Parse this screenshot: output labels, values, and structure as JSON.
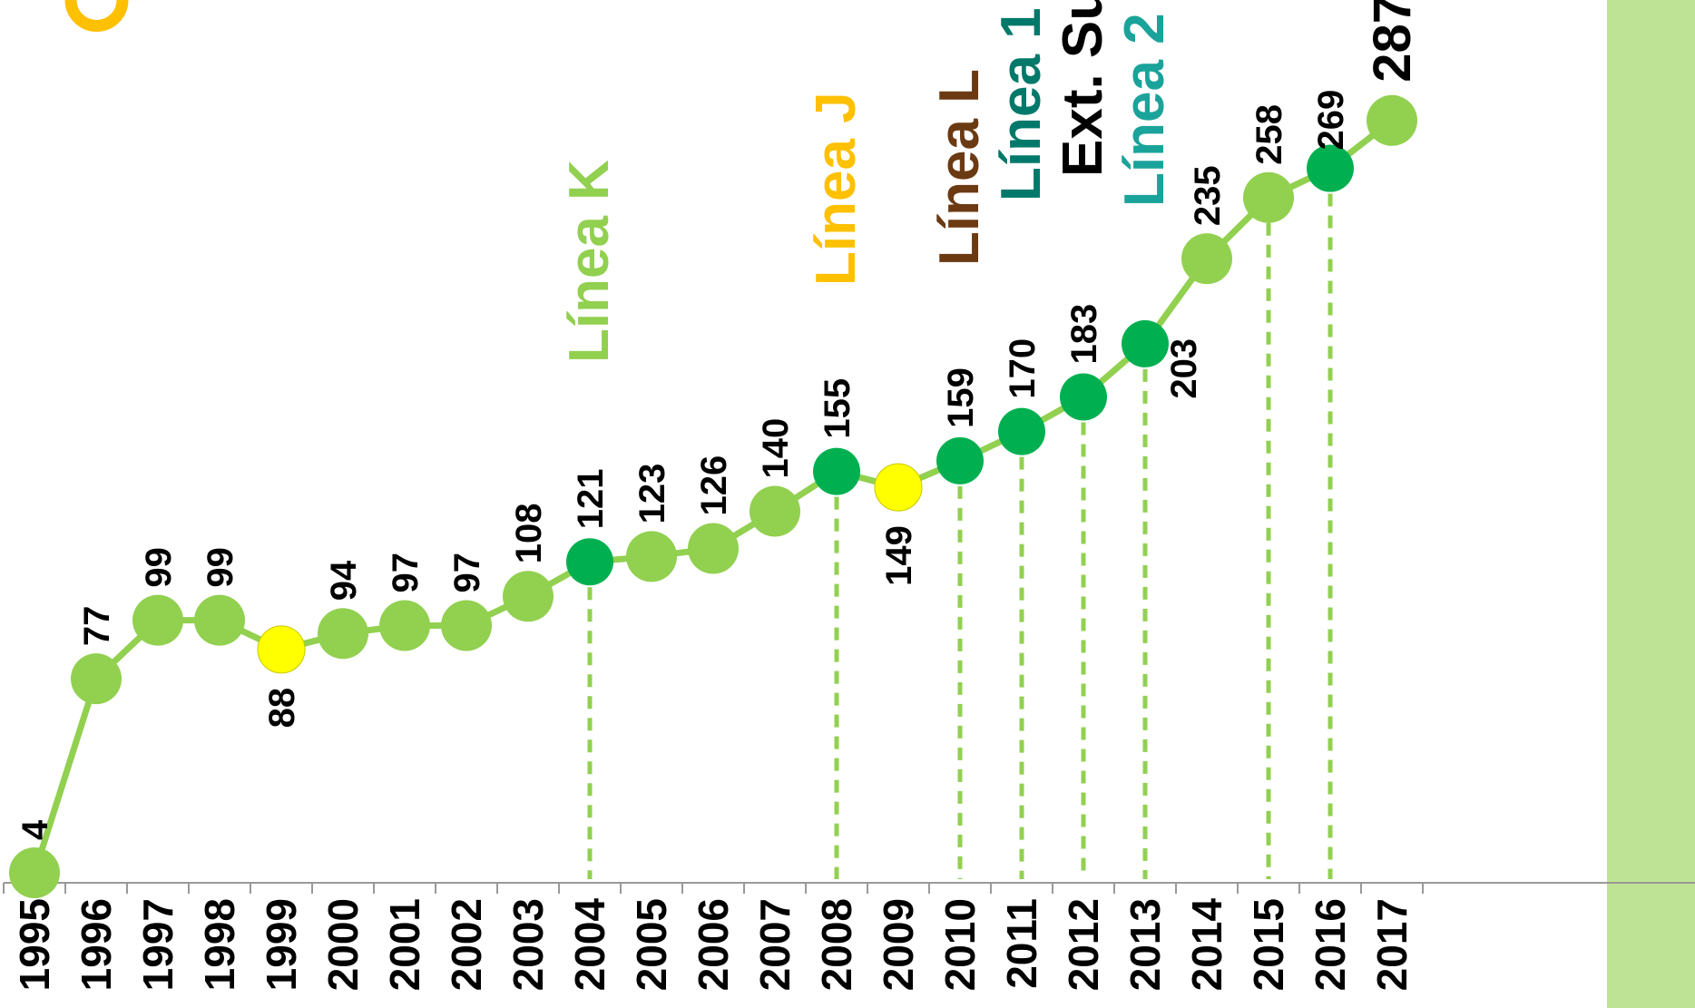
{
  "chart_data": {
    "type": "line",
    "title": "",
    "xlabel": "",
    "ylabel": "",
    "ylim": [
      0,
      300
    ],
    "x": [
      "1995",
      "1996",
      "1997",
      "1998",
      "1999",
      "2000",
      "2001",
      "2002",
      "2003",
      "2004",
      "2005",
      "2006",
      "2007",
      "2008",
      "2009",
      "2010",
      "2011",
      "2012",
      "2013",
      "2014",
      "2015",
      "2016",
      "2017"
    ],
    "series": [
      {
        "values": [
          4,
          77,
          99,
          99,
          88,
          94,
          97,
          97,
          108,
          121,
          123,
          126,
          140,
          155,
          149,
          159,
          170,
          183,
          203,
          235,
          258,
          269,
          287
        ],
        "point_types": [
          "normal",
          "normal",
          "normal",
          "normal",
          "yellow",
          "normal",
          "normal",
          "normal",
          "normal",
          "event",
          "normal",
          "normal",
          "normal",
          "event",
          "yellow",
          "event",
          "event",
          "event",
          "event",
          "normal",
          "normal",
          "event",
          "normal"
        ]
      }
    ],
    "value_labels": [
      "4",
      "77",
      "99",
      "99",
      "88",
      "94",
      "97",
      "97",
      "108",
      "121",
      "123",
      "126",
      "140",
      "155",
      "149",
      "159",
      "170",
      "183",
      "203",
      "235",
      "258",
      "269",
      "287"
    ],
    "events": [
      {
        "year": "2004",
        "label": "Línea K",
        "color": "#92D050"
      },
      {
        "year": "2008",
        "label": "Línea J",
        "color": "#FFC000"
      },
      {
        "year": "2010",
        "label": "Línea L",
        "color": "#6B3A12"
      },
      {
        "year": "2011",
        "label": "Línea 1",
        "color": "#00796B"
      },
      {
        "year": "2012",
        "label": "Ext. Su",
        "color": "#000000"
      },
      {
        "year": "2013",
        "label": "Línea 2",
        "color": "#1AA39A"
      }
    ],
    "dashed_years": [
      "2004",
      "2008",
      "2010",
      "2011",
      "2012",
      "2013",
      "2015",
      "2016"
    ],
    "highlight_year": "2017",
    "colors": {
      "line": "#92D050",
      "point": "#92D050",
      "event_point": "#00B050",
      "yellow_point": "#FFFF00",
      "highlight_band": "#BEE395",
      "partial_mark": "#FFC000"
    }
  }
}
